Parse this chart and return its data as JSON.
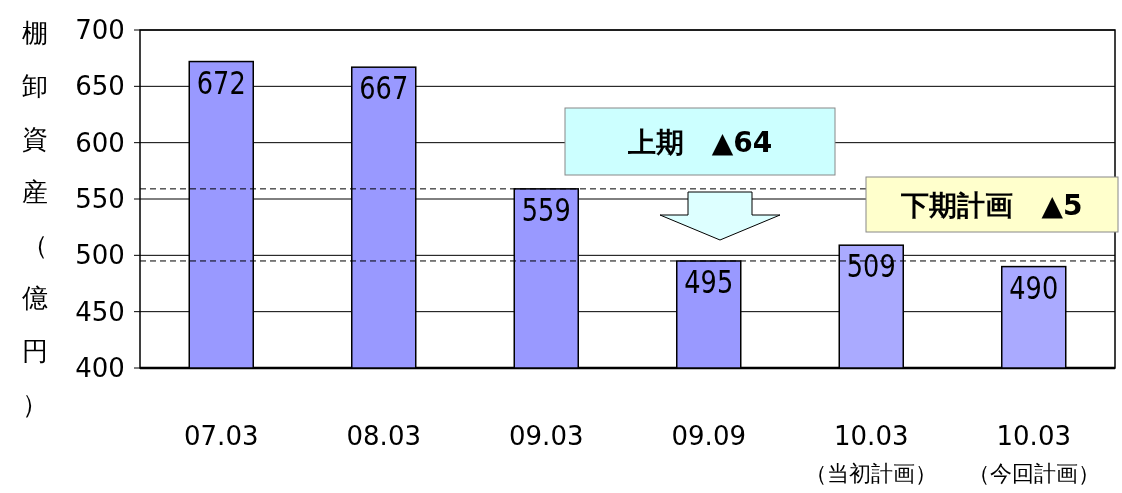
{
  "chart_data": {
    "type": "bar",
    "ylabel": "棚卸資産（億円）",
    "categories": [
      "07.03",
      "08.03",
      "09.03",
      "09.09",
      "10.03\n（当初計画）",
      "10.03\n（今回計画）"
    ],
    "values": [
      672,
      667,
      559,
      495,
      509,
      490
    ],
    "colors": [
      "#9999ff",
      "#9999ff",
      "#9999ff",
      "#9999ff",
      "#aaaaff",
      "#aaaaff"
    ],
    "ylim": [
      400,
      700
    ],
    "yticks": [
      400,
      450,
      500,
      550,
      600,
      650,
      700
    ],
    "grid": "y",
    "data_labels": true,
    "ref_lines": [
      {
        "axis": "y",
        "value": 559,
        "label": null,
        "line_style": "dashed"
      },
      {
        "axis": "y",
        "value": 495,
        "label": null,
        "line_style": "dashed"
      }
    ],
    "annotations": [
      "上期　▲64",
      "下期計画　▲5"
    ]
  }
}
